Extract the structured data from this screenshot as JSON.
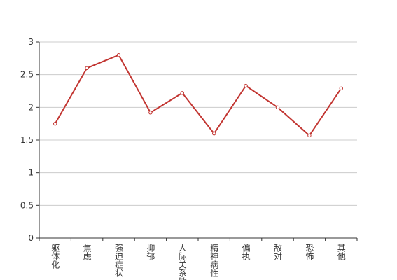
{
  "chart_data": {
    "type": "line",
    "categories": [
      "躯体化",
      "焦虑",
      "强迫症状",
      "抑郁",
      "人际关系敏感",
      "精神病性",
      "偏执",
      "敌对",
      "恐怖",
      "其他"
    ],
    "values": [
      1.75,
      2.6,
      2.8,
      1.92,
      2.22,
      1.6,
      2.33,
      2.0,
      1.57,
      2.29
    ],
    "color": "#c23531",
    "ylim": [
      0,
      3
    ],
    "yticks": [
      0,
      0.5,
      1,
      1.5,
      2,
      2.5,
      3
    ],
    "grid": true
  }
}
